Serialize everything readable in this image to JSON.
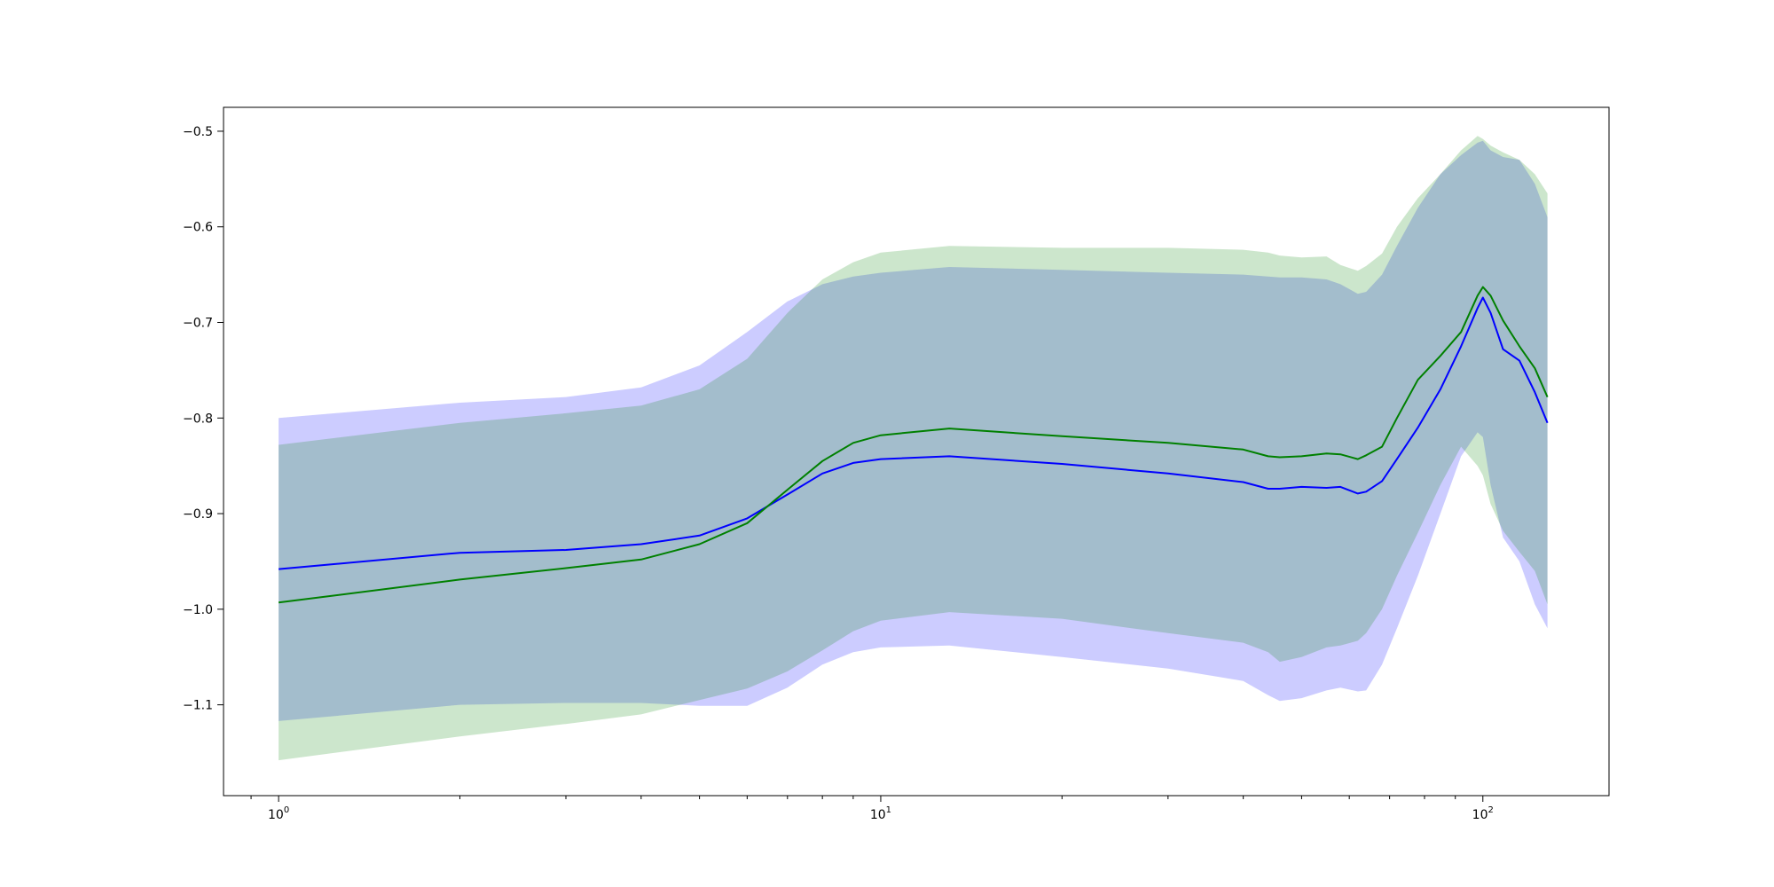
{
  "chart_data": {
    "type": "line",
    "title": "",
    "xlabel": "",
    "ylabel": "",
    "xscale": "log",
    "xlim": [
      0.81,
      162
    ],
    "ylim": [
      -1.195,
      -0.475
    ],
    "grid": false,
    "legend": "none",
    "x_ticks": [
      {
        "base": "10",
        "exp": "0",
        "value": 1
      },
      {
        "base": "10",
        "exp": "1",
        "value": 10
      },
      {
        "base": "10",
        "exp": "2",
        "value": 100
      }
    ],
    "y_ticks": [
      {
        "value": -0.5,
        "label": "−0.5"
      },
      {
        "value": -0.6,
        "label": "−0.6"
      },
      {
        "value": -0.7,
        "label": "−0.7"
      },
      {
        "value": -0.8,
        "label": "−0.8"
      },
      {
        "value": -0.9,
        "label": "−0.9"
      },
      {
        "value": -1.0,
        "label": "−1.0"
      },
      {
        "value": -1.1,
        "label": "−1.1"
      }
    ],
    "series": [
      {
        "color": "#0000ff",
        "band_color": "#0000ff",
        "band_opacity": 0.2,
        "x": [
          1,
          2,
          3,
          4,
          5,
          6,
          7,
          8,
          9,
          10,
          13,
          20,
          30,
          40,
          44,
          46,
          50,
          55,
          58,
          62,
          64,
          68,
          72,
          78,
          85,
          92,
          98,
          100,
          103,
          108,
          115,
          122,
          128
        ],
        "y": [
          -0.958,
          -0.941,
          -0.938,
          -0.932,
          -0.923,
          -0.905,
          -0.88,
          -0.858,
          -0.847,
          -0.843,
          -0.84,
          -0.848,
          -0.858,
          -0.867,
          -0.874,
          -0.874,
          -0.872,
          -0.873,
          -0.872,
          -0.879,
          -0.877,
          -0.866,
          -0.843,
          -0.81,
          -0.77,
          -0.725,
          -0.685,
          -0.674,
          -0.69,
          -0.728,
          -0.74,
          -0.773,
          -0.805
        ],
        "upper": [
          -0.8,
          -0.784,
          -0.778,
          -0.768,
          -0.745,
          -0.71,
          -0.678,
          -0.66,
          -0.652,
          -0.648,
          -0.642,
          -0.645,
          -0.648,
          -0.65,
          -0.652,
          -0.653,
          -0.653,
          -0.655,
          -0.66,
          -0.67,
          -0.668,
          -0.65,
          -0.62,
          -0.58,
          -0.545,
          -0.525,
          -0.512,
          -0.51,
          -0.52,
          -0.527,
          -0.53,
          -0.555,
          -0.59
        ],
        "lower": [
          -1.117,
          -1.1,
          -1.098,
          -1.098,
          -1.101,
          -1.101,
          -1.082,
          -1.058,
          -1.045,
          -1.04,
          -1.038,
          -1.05,
          -1.062,
          -1.075,
          -1.09,
          -1.096,
          -1.093,
          -1.085,
          -1.082,
          -1.086,
          -1.085,
          -1.058,
          -1.02,
          -0.965,
          -0.9,
          -0.84,
          -0.815,
          -0.82,
          -0.87,
          -0.925,
          -0.95,
          -0.995,
          -1.02
        ]
      },
      {
        "color": "#008000",
        "band_color": "#008000",
        "band_opacity": 0.2,
        "x": [
          1,
          2,
          3,
          4,
          5,
          6,
          7,
          8,
          9,
          10,
          13,
          20,
          30,
          40,
          44,
          46,
          50,
          55,
          58,
          62,
          64,
          68,
          72,
          78,
          85,
          92,
          98,
          100,
          103,
          108,
          115,
          122,
          128
        ],
        "y": [
          -0.993,
          -0.969,
          -0.957,
          -0.948,
          -0.932,
          -0.91,
          -0.875,
          -0.845,
          -0.826,
          -0.818,
          -0.811,
          -0.819,
          -0.826,
          -0.833,
          -0.84,
          -0.841,
          -0.84,
          -0.837,
          -0.838,
          -0.843,
          -0.839,
          -0.83,
          -0.8,
          -0.76,
          -0.735,
          -0.71,
          -0.672,
          -0.663,
          -0.672,
          -0.698,
          -0.725,
          -0.748,
          -0.778
        ],
        "upper": [
          -0.828,
          -0.805,
          -0.795,
          -0.787,
          -0.77,
          -0.738,
          -0.69,
          -0.655,
          -0.637,
          -0.627,
          -0.62,
          -0.622,
          -0.622,
          -0.624,
          -0.627,
          -0.63,
          -0.632,
          -0.631,
          -0.64,
          -0.646,
          -0.641,
          -0.628,
          -0.6,
          -0.57,
          -0.545,
          -0.52,
          -0.505,
          -0.508,
          -0.515,
          -0.522,
          -0.53,
          -0.545,
          -0.565
        ],
        "lower": [
          -1.158,
          -1.133,
          -1.12,
          -1.11,
          -1.095,
          -1.083,
          -1.065,
          -1.043,
          -1.023,
          -1.012,
          -1.003,
          -1.01,
          -1.025,
          -1.035,
          -1.045,
          -1.055,
          -1.05,
          -1.04,
          -1.038,
          -1.033,
          -1.025,
          -1.0,
          -0.965,
          -0.92,
          -0.87,
          -0.83,
          -0.85,
          -0.86,
          -0.89,
          -0.918,
          -0.94,
          -0.96,
          -0.995
        ]
      }
    ]
  }
}
